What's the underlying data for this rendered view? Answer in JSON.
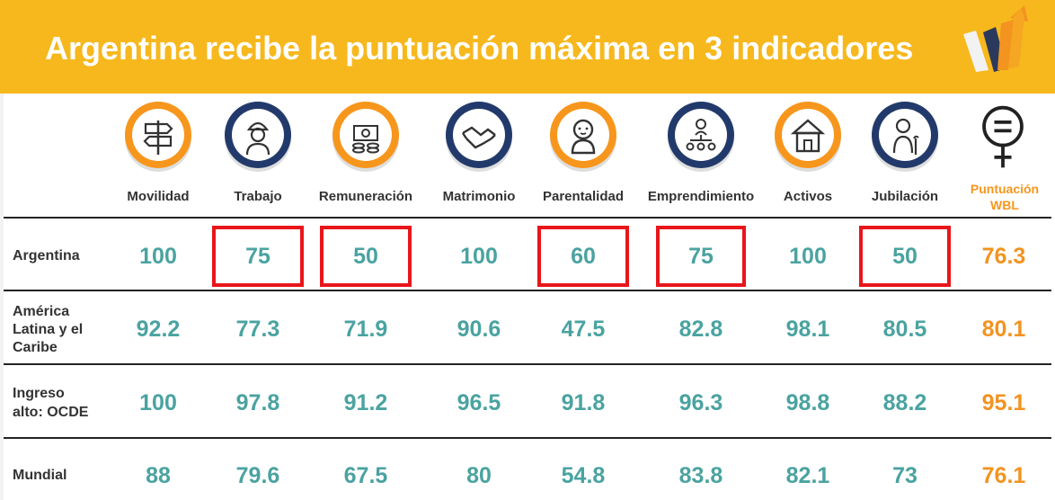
{
  "title": "Argentina recibe la puntuación máxima en 3 indicadores",
  "colors": {
    "banner": "#f7b81d",
    "value_teal": "#4aa3a0",
    "value_orange": "#f39320",
    "highlight_red": "#e8161b",
    "icon_orange_ring": "#f7961d",
    "icon_navy_ring": "#223a6b"
  },
  "columns": [
    {
      "label": "Movilidad",
      "icon": "signpost-icon",
      "ring": "orange"
    },
    {
      "label": "Trabajo",
      "icon": "worker-icon",
      "ring": "navy"
    },
    {
      "label": "Remuneración",
      "icon": "money-icon",
      "ring": "orange"
    },
    {
      "label": "Matrimonio",
      "icon": "handshake-icon",
      "ring": "navy"
    },
    {
      "label": "Parentalidad",
      "icon": "baby-icon",
      "ring": "orange"
    },
    {
      "label": "Emprendimiento",
      "icon": "network-icon",
      "ring": "navy"
    },
    {
      "label": "Activos",
      "icon": "house-icon",
      "ring": "orange"
    },
    {
      "label": "Jubilación",
      "icon": "elder-icon",
      "ring": "navy"
    }
  ],
  "wbl_header": {
    "line1": "Puntuación",
    "line2": "WBL",
    "icon": "female-equal-icon"
  },
  "rows": [
    {
      "label_lines": [
        "Argentina"
      ],
      "values": [
        "100",
        "75",
        "50",
        "100",
        "60",
        "75",
        "100",
        "50"
      ],
      "wbl": "76.3",
      "highlighted": [
        1,
        2,
        4,
        5,
        7
      ]
    },
    {
      "label_lines": [
        "América",
        "Latina y el",
        "Caribe"
      ],
      "values": [
        "92.2",
        "77.3",
        "71.9",
        "90.6",
        "47.5",
        "82.8",
        "98.1",
        "80.5"
      ],
      "wbl": "80.1",
      "highlighted": []
    },
    {
      "label_lines": [
        "Ingreso",
        "alto: OCDE"
      ],
      "values": [
        "100",
        "97.8",
        "91.2",
        "96.5",
        "91.8",
        "96.3",
        "98.8",
        "88.2"
      ],
      "wbl": "95.1",
      "highlighted": []
    },
    {
      "label_lines": [
        "Mundial"
      ],
      "values": [
        "88",
        "79.6",
        "67.5",
        "80",
        "54.8",
        "83.8",
        "82.1",
        "73"
      ],
      "wbl": "76.1",
      "highlighted": []
    }
  ]
}
